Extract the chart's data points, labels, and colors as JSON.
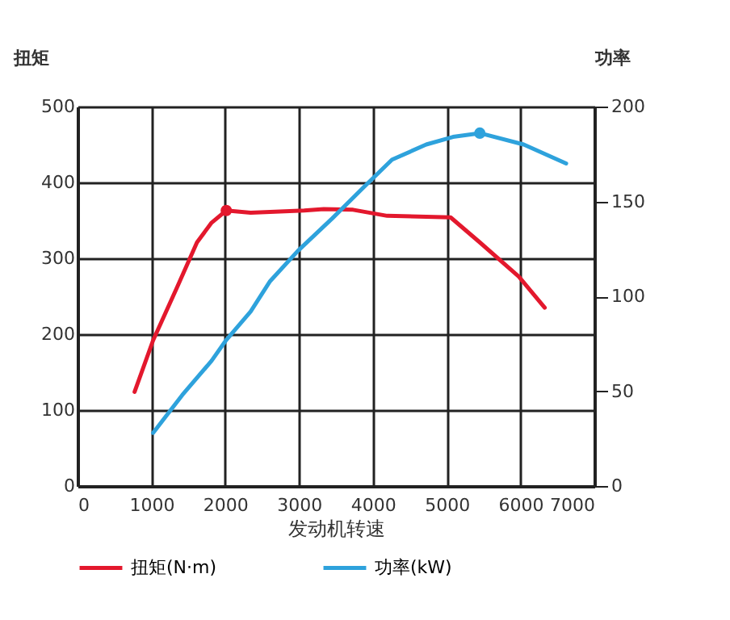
{
  "chart_data": {
    "type": "line",
    "xlabel": "发动机转速",
    "ylabel": "扭矩",
    "y2label": "功率",
    "xlim": [
      0,
      7000
    ],
    "xticks": [
      0,
      1000,
      2000,
      3000,
      4000,
      5000,
      6000,
      7000
    ],
    "ylim": [
      0,
      500
    ],
    "yticks": [
      0,
      100,
      200,
      300,
      400,
      500
    ],
    "y2lim": [
      0,
      200
    ],
    "y2ticks": [
      0,
      50,
      100,
      150,
      200
    ],
    "grid": true,
    "legend": "bottom",
    "line_style": "solid",
    "marker": "none",
    "series": [
      {
        "name": "扭矩(N·m)",
        "color": "#e3182d",
        "x": [
          773,
          1024,
          1354,
          1618,
          1816,
          2015,
          2345,
          3071,
          3335,
          3732,
          4194,
          5053,
          5449,
          5977,
          6328
        ],
        "values": [
          124,
          192,
          263,
          321,
          347,
          363,
          360,
          363,
          365,
          364,
          356,
          354,
          321,
          276,
          235
        ]
      },
      {
        "name": "功率(kW)",
        "color": "#2ea2dc",
        "axis": "y2",
        "x": [
          1024,
          1420,
          1816,
          2015,
          2345,
          2609,
          2986,
          3449,
          3864,
          4260,
          4723,
          5086,
          5449,
          6043,
          6618
        ],
        "values": [
          28,
          48,
          66,
          77,
          92,
          108,
          124,
          141,
          157,
          172,
          180,
          184,
          186,
          180,
          170
        ]
      },
      {
        "type": "scatter",
        "color": "#e3182d",
        "marker": "circle",
        "x": [
          2015
        ],
        "values": [
          363
        ]
      },
      {
        "type": "scatter",
        "color": "#2ea2dc",
        "marker": "circle",
        "axis": "y2",
        "x": [
          5449
        ],
        "values": [
          186
        ]
      }
    ]
  }
}
